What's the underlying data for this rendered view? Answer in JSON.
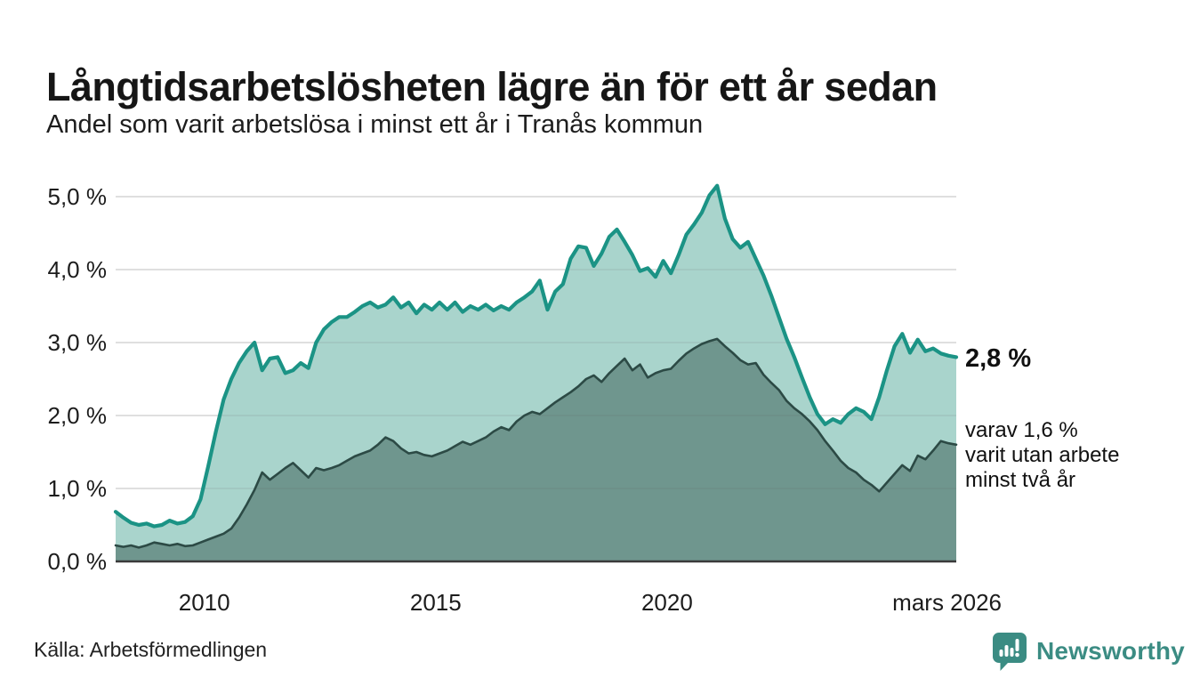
{
  "header": {
    "title": "Långtidsarbetslösheten lägre än för ett år sedan",
    "subtitle": "Andel som varit arbetslösa i minst ett år i Tranås kommun"
  },
  "annotations": {
    "latest_value": "2,8 %",
    "secondary_lines": [
      "varav 1,6 %",
      "varit utan arbete",
      "minst två år"
    ]
  },
  "footer": {
    "source": "Källa: Arbetsförmedlingen",
    "brand": "Newsworthy",
    "brand_color": "#3b8c83"
  },
  "colors": {
    "accent_teal_line": "#1b9385",
    "accent_teal_fill": "#a9d4cc",
    "dark_area_line": "#2c4a45",
    "dark_area_fill": "#6f968e",
    "axis_line": "#3a3a3a",
    "gridline": "#e7e7e7",
    "text": "#1c1c1c"
  },
  "chart_data": {
    "type": "area",
    "title": "Långtidsarbetslösheten lägre än för ett år sedan",
    "subtitle": "Andel som varit arbetslösa i minst ett år i Tranås kommun",
    "xlabel": "",
    "ylabel": "",
    "xlim": [
      2008.083,
      2026.25
    ],
    "ylim": [
      0,
      5.3
    ],
    "grid": true,
    "legend": "none",
    "x_ticks": [
      {
        "value": 2010,
        "label": "2010"
      },
      {
        "value": 2015,
        "label": "2015"
      },
      {
        "value": 2020,
        "label": "2020"
      },
      {
        "value": 2026.05,
        "label": "mars 2026"
      }
    ],
    "y_ticks": [
      {
        "value": 0,
        "label": "0,0 %"
      },
      {
        "value": 1,
        "label": "1,0 %"
      },
      {
        "value": 2,
        "label": "2,0 %"
      },
      {
        "value": 3,
        "label": "3,0 %"
      },
      {
        "value": 4,
        "label": "4,0 %"
      },
      {
        "value": 5,
        "label": "5,0 %"
      }
    ],
    "x_start": 2008.083,
    "x_step_years": 0.1667,
    "series": [
      {
        "name": "Andel arbetslösa minst ett år",
        "latest_value_label": "2,8 %",
        "color": "#1b9385",
        "fill": "#a9d4cc",
        "values": [
          0.68,
          0.6,
          0.53,
          0.5,
          0.52,
          0.48,
          0.5,
          0.56,
          0.52,
          0.54,
          0.62,
          0.85,
          1.3,
          1.78,
          2.22,
          2.5,
          2.72,
          2.88,
          3.0,
          2.62,
          2.78,
          2.8,
          2.58,
          2.62,
          2.72,
          2.65,
          3.0,
          3.18,
          3.28,
          3.35,
          3.35,
          3.42,
          3.5,
          3.55,
          3.48,
          3.52,
          3.62,
          3.48,
          3.55,
          3.4,
          3.52,
          3.45,
          3.55,
          3.45,
          3.55,
          3.42,
          3.5,
          3.45,
          3.52,
          3.44,
          3.5,
          3.45,
          3.55,
          3.62,
          3.7,
          3.85,
          3.45,
          3.7,
          3.8,
          4.15,
          4.32,
          4.3,
          4.05,
          4.22,
          4.45,
          4.55,
          4.38,
          4.2,
          3.98,
          4.02,
          3.9,
          4.12,
          3.95,
          4.2,
          4.48,
          4.62,
          4.78,
          5.02,
          5.15,
          4.7,
          4.42,
          4.3,
          4.38,
          4.15,
          3.92,
          3.65,
          3.35,
          3.05,
          2.8,
          2.52,
          2.25,
          2.02,
          1.88,
          1.95,
          1.9,
          2.02,
          2.1,
          2.05,
          1.95,
          2.25,
          2.62,
          2.95,
          3.12,
          2.86,
          3.04,
          2.88,
          2.92,
          2.85,
          2.82,
          2.8
        ]
      },
      {
        "name": "varav arbetslösa minst två år",
        "latest_value_label": "1,6 %",
        "color": "#2c4a45",
        "fill": "#6f968e",
        "values": [
          0.22,
          0.2,
          0.22,
          0.19,
          0.22,
          0.26,
          0.24,
          0.22,
          0.24,
          0.21,
          0.22,
          0.26,
          0.3,
          0.34,
          0.38,
          0.45,
          0.6,
          0.78,
          0.98,
          1.22,
          1.12,
          1.2,
          1.28,
          1.35,
          1.25,
          1.15,
          1.28,
          1.25,
          1.28,
          1.32,
          1.38,
          1.44,
          1.48,
          1.52,
          1.6,
          1.7,
          1.65,
          1.55,
          1.48,
          1.5,
          1.46,
          1.44,
          1.48,
          1.52,
          1.58,
          1.64,
          1.6,
          1.65,
          1.7,
          1.78,
          1.84,
          1.8,
          1.92,
          2.0,
          2.05,
          2.02,
          2.1,
          2.18,
          2.25,
          2.32,
          2.4,
          2.5,
          2.55,
          2.46,
          2.58,
          2.68,
          2.78,
          2.62,
          2.7,
          2.52,
          2.58,
          2.62,
          2.64,
          2.75,
          2.85,
          2.92,
          2.98,
          3.02,
          3.05,
          2.95,
          2.86,
          2.76,
          2.7,
          2.72,
          2.56,
          2.45,
          2.35,
          2.2,
          2.1,
          2.02,
          1.92,
          1.8,
          1.65,
          1.52,
          1.38,
          1.28,
          1.22,
          1.12,
          1.05,
          0.96,
          1.08,
          1.2,
          1.32,
          1.24,
          1.45,
          1.4,
          1.52,
          1.65,
          1.62,
          1.6
        ]
      }
    ]
  }
}
